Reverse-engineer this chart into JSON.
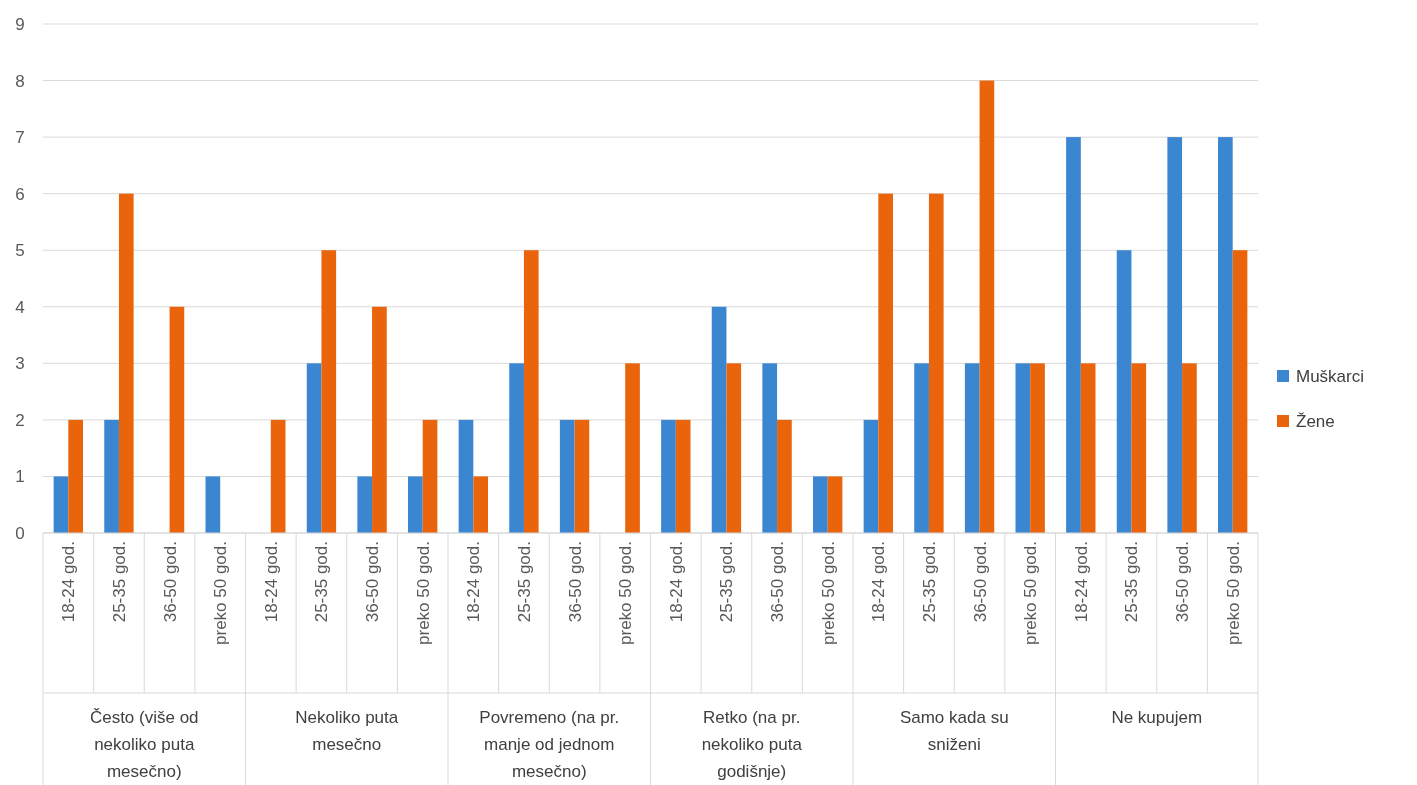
{
  "chart_data": {
    "type": "bar",
    "categories": [
      "18-24 god.",
      "25-35 god.",
      "36-50 god.",
      "preko 50 god.",
      "18-24 god.",
      "25-35 god.",
      "36-50 god.",
      "preko 50 god.",
      "18-24 god.",
      "25-35 god.",
      "36-50 god.",
      "preko 50 god.",
      "18-24 god.",
      "25-35 god.",
      "36-50 god.",
      "preko 50 god.",
      "18-24 god.",
      "25-35 god.",
      "36-50 god.",
      "preko 50 god.",
      "18-24 god.",
      "25-35 god.",
      "36-50 god.",
      "preko 50 god."
    ],
    "series": [
      {
        "name": "Muškarci",
        "color": "#3a86d0",
        "values": [
          1,
          2,
          0,
          1,
          0,
          3,
          1,
          1,
          2,
          3,
          2,
          0,
          2,
          4,
          3,
          1,
          2,
          3,
          3,
          3,
          7,
          5,
          7,
          7
        ]
      },
      {
        "name": "Žene",
        "color": "#ea640c",
        "values": [
          2,
          6,
          4,
          0,
          2,
          5,
          4,
          2,
          1,
          5,
          2,
          3,
          2,
          3,
          2,
          1,
          6,
          6,
          8,
          3,
          3,
          3,
          3,
          5
        ]
      }
    ],
    "annotations": [
      "Često (više od nekoliko puta mesečno)",
      "Nekoliko puta mesečno",
      "Povremeno (na pr. manje od jednom mesečno)",
      "Retko (na pr. nekoliko puta godišnje)",
      "Samo kada su sniženi",
      "Ne kupujem"
    ],
    "ylim": [
      0,
      9
    ],
    "yticks": [
      0,
      1,
      2,
      3,
      4,
      5,
      6,
      7,
      8,
      9
    ],
    "grid": "y",
    "legend": "right"
  }
}
